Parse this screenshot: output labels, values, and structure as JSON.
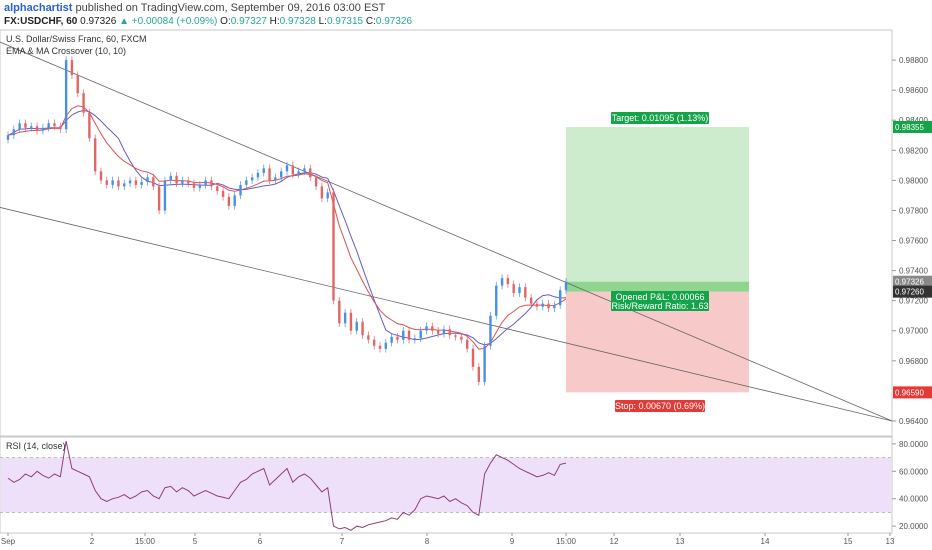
{
  "header": {
    "author": "alphachartist",
    "published": "published on TradingView.com, September 09, 2016 03:00 EST",
    "symbol": "FX:USDCHF, 60",
    "last": "0.97326",
    "change_arrow": "▲",
    "change": "+0.00084 (+0.09%)",
    "o_label": "O:",
    "o_value": "0.97327",
    "h_label": "H:",
    "h_value": "0.97328",
    "l_label": "L:",
    "l_value": "0.97315",
    "c_label": "C:",
    "c_value": "0.97326"
  },
  "legend": {
    "instrument": "U.S. Dollar/Swiss Franc, 60, FXCM",
    "indicator": "EMA & MA Crossover (10, 10)",
    "rsi": "RSI (14, close)"
  },
  "colors": {
    "up": "#4a90e2",
    "down": "#e06666",
    "ema": "#d9534f",
    "ma": "#6a5acd",
    "target_fill": "#cdeccd",
    "stop_fill": "#f8c9c9",
    "target_label_bg": "#15a34a",
    "stop_label_bg": "#e53935",
    "rsi_line": "#8e3d7a",
    "rsi_band": "#efe0fa"
  },
  "chart_data": [
    {
      "type": "candlestick",
      "ylim": [
        0.963,
        0.99
      ],
      "y_ticks": [
        "0.98800",
        "0.98600",
        "0.98400",
        "0.98200",
        "0.98000",
        "0.97800",
        "0.97600",
        "0.97400",
        "0.97200",
        "0.97000",
        "0.96800",
        "0.96400"
      ],
      "x_ticks": [
        "Sep",
        "2",
        "15:00",
        "5",
        "6",
        "7",
        "8",
        "9",
        "15:00",
        "12",
        "13",
        "14",
        "15",
        "13"
      ],
      "price_labels": [
        {
          "text": "0.98355",
          "value": 0.98355,
          "color": "#15a34a"
        },
        {
          "text": "0.97326",
          "value": 0.97326,
          "color": "#888888"
        },
        {
          "text": "0.97260",
          "value": 0.9726,
          "color": "#333333"
        },
        {
          "text": "0.96590",
          "value": 0.9659,
          "color": "#e53935"
        }
      ],
      "close": [
        0.983,
        0.9834,
        0.9838,
        0.9835,
        0.9836,
        0.9833,
        0.9835,
        0.9838,
        0.9836,
        0.9834,
        0.988,
        0.987,
        0.9858,
        0.9845,
        0.9828,
        0.9806,
        0.98,
        0.9797,
        0.98,
        0.9796,
        0.9798,
        0.98,
        0.9797,
        0.9799,
        0.9802,
        0.9796,
        0.978,
        0.98,
        0.9803,
        0.9798,
        0.98,
        0.9798,
        0.9795,
        0.9797,
        0.98,
        0.9796,
        0.9793,
        0.9789,
        0.9783,
        0.979,
        0.9797,
        0.98,
        0.9802,
        0.9805,
        0.9808,
        0.98,
        0.9802,
        0.9806,
        0.981,
        0.9804,
        0.9806,
        0.9808,
        0.9802,
        0.9796,
        0.9788,
        0.9792,
        0.972,
        0.9705,
        0.9712,
        0.97,
        0.9706,
        0.9697,
        0.9694,
        0.969,
        0.9688,
        0.9692,
        0.9696,
        0.9694,
        0.97,
        0.9694,
        0.9695,
        0.97,
        0.9703,
        0.97,
        0.9698,
        0.9701,
        0.9697,
        0.9696,
        0.9694,
        0.9688,
        0.9676,
        0.9666,
        0.969,
        0.971,
        0.973,
        0.9735,
        0.9731,
        0.9725,
        0.9729,
        0.9722,
        0.9718,
        0.9716,
        0.9718,
        0.9715,
        0.9717,
        0.9727,
        0.97326
      ],
      "lines": [
        {
          "name": "upper-trendline",
          "from": [
            "Sep",
            0.9892
          ],
          "to": [
            "right",
            0.964
          ]
        },
        {
          "name": "lower-trendline",
          "from": [
            "Sep",
            0.9782
          ],
          "to": [
            "right",
            0.964
          ]
        }
      ],
      "position": {
        "entry": 0.9726,
        "target": 0.98355,
        "stop": 0.9659,
        "target_label": "Target: 0.01095 (1.13%)",
        "stop_label": "Stop: 0.00670 (0.69%)",
        "pnl_label": "Opened P&L: 0.00066",
        "rr_label": "Risk/Reward Ratio: 1.63"
      }
    },
    {
      "type": "line",
      "name": "RSI",
      "ylim": [
        15,
        85
      ],
      "band": [
        30,
        70
      ],
      "y_ticks": [
        "80.0000",
        "60.0000",
        "40.0000",
        "20.0000"
      ],
      "values": [
        55,
        52,
        54,
        58,
        56,
        60,
        57,
        55,
        58,
        56,
        82,
        62,
        60,
        58,
        56,
        46,
        40,
        38,
        40,
        41,
        43,
        40,
        42,
        45,
        46,
        42,
        40,
        48,
        49,
        45,
        48,
        46,
        42,
        44,
        46,
        44,
        42,
        41,
        40,
        46,
        52,
        54,
        58,
        60,
        62,
        50,
        54,
        58,
        62,
        52,
        56,
        58,
        55,
        50,
        45,
        48,
        20,
        18,
        19,
        17,
        20,
        19,
        21,
        22,
        23,
        24,
        26,
        25,
        30,
        28,
        32,
        40,
        42,
        41,
        40,
        42,
        38,
        40,
        37,
        35,
        30,
        28,
        58,
        66,
        72,
        70,
        68,
        65,
        62,
        60,
        58,
        56,
        57,
        59,
        57,
        65,
        66
      ]
    }
  ]
}
